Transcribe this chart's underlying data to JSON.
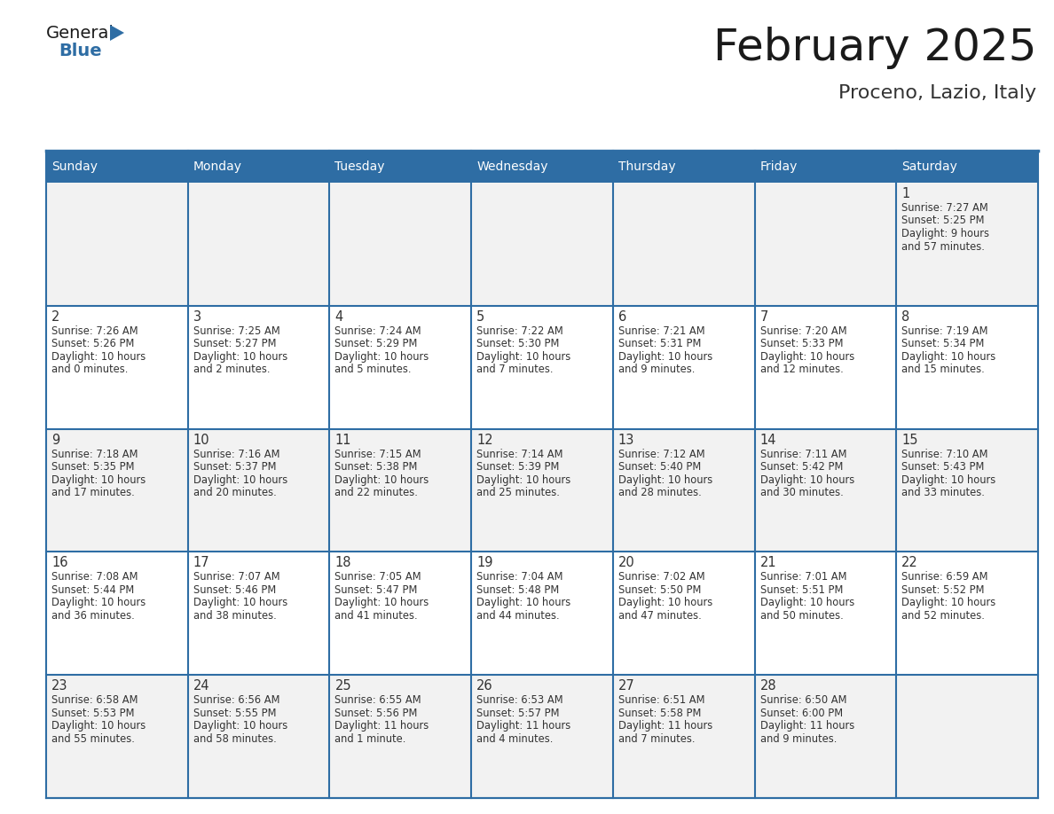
{
  "title": "February 2025",
  "subtitle": "Proceno, Lazio, Italy",
  "header_bg": "#2E6DA4",
  "header_text": "#FFFFFF",
  "cell_bg_gray": "#F2F2F2",
  "cell_bg_white": "#FFFFFF",
  "border_color": "#2E6DA4",
  "days_of_week": [
    "Sunday",
    "Monday",
    "Tuesday",
    "Wednesday",
    "Thursday",
    "Friday",
    "Saturday"
  ],
  "calendar_data": [
    [
      null,
      null,
      null,
      null,
      null,
      null,
      {
        "day": "1",
        "sunrise": "Sunrise: 7:27 AM",
        "sunset": "Sunset: 5:25 PM",
        "daylight1": "Daylight: 9 hours",
        "daylight2": "and 57 minutes."
      }
    ],
    [
      {
        "day": "2",
        "sunrise": "Sunrise: 7:26 AM",
        "sunset": "Sunset: 5:26 PM",
        "daylight1": "Daylight: 10 hours",
        "daylight2": "and 0 minutes."
      },
      {
        "day": "3",
        "sunrise": "Sunrise: 7:25 AM",
        "sunset": "Sunset: 5:27 PM",
        "daylight1": "Daylight: 10 hours",
        "daylight2": "and 2 minutes."
      },
      {
        "day": "4",
        "sunrise": "Sunrise: 7:24 AM",
        "sunset": "Sunset: 5:29 PM",
        "daylight1": "Daylight: 10 hours",
        "daylight2": "and 5 minutes."
      },
      {
        "day": "5",
        "sunrise": "Sunrise: 7:22 AM",
        "sunset": "Sunset: 5:30 PM",
        "daylight1": "Daylight: 10 hours",
        "daylight2": "and 7 minutes."
      },
      {
        "day": "6",
        "sunrise": "Sunrise: 7:21 AM",
        "sunset": "Sunset: 5:31 PM",
        "daylight1": "Daylight: 10 hours",
        "daylight2": "and 9 minutes."
      },
      {
        "day": "7",
        "sunrise": "Sunrise: 7:20 AM",
        "sunset": "Sunset: 5:33 PM",
        "daylight1": "Daylight: 10 hours",
        "daylight2": "and 12 minutes."
      },
      {
        "day": "8",
        "sunrise": "Sunrise: 7:19 AM",
        "sunset": "Sunset: 5:34 PM",
        "daylight1": "Daylight: 10 hours",
        "daylight2": "and 15 minutes."
      }
    ],
    [
      {
        "day": "9",
        "sunrise": "Sunrise: 7:18 AM",
        "sunset": "Sunset: 5:35 PM",
        "daylight1": "Daylight: 10 hours",
        "daylight2": "and 17 minutes."
      },
      {
        "day": "10",
        "sunrise": "Sunrise: 7:16 AM",
        "sunset": "Sunset: 5:37 PM",
        "daylight1": "Daylight: 10 hours",
        "daylight2": "and 20 minutes."
      },
      {
        "day": "11",
        "sunrise": "Sunrise: 7:15 AM",
        "sunset": "Sunset: 5:38 PM",
        "daylight1": "Daylight: 10 hours",
        "daylight2": "and 22 minutes."
      },
      {
        "day": "12",
        "sunrise": "Sunrise: 7:14 AM",
        "sunset": "Sunset: 5:39 PM",
        "daylight1": "Daylight: 10 hours",
        "daylight2": "and 25 minutes."
      },
      {
        "day": "13",
        "sunrise": "Sunrise: 7:12 AM",
        "sunset": "Sunset: 5:40 PM",
        "daylight1": "Daylight: 10 hours",
        "daylight2": "and 28 minutes."
      },
      {
        "day": "14",
        "sunrise": "Sunrise: 7:11 AM",
        "sunset": "Sunset: 5:42 PM",
        "daylight1": "Daylight: 10 hours",
        "daylight2": "and 30 minutes."
      },
      {
        "day": "15",
        "sunrise": "Sunrise: 7:10 AM",
        "sunset": "Sunset: 5:43 PM",
        "daylight1": "Daylight: 10 hours",
        "daylight2": "and 33 minutes."
      }
    ],
    [
      {
        "day": "16",
        "sunrise": "Sunrise: 7:08 AM",
        "sunset": "Sunset: 5:44 PM",
        "daylight1": "Daylight: 10 hours",
        "daylight2": "and 36 minutes."
      },
      {
        "day": "17",
        "sunrise": "Sunrise: 7:07 AM",
        "sunset": "Sunset: 5:46 PM",
        "daylight1": "Daylight: 10 hours",
        "daylight2": "and 38 minutes."
      },
      {
        "day": "18",
        "sunrise": "Sunrise: 7:05 AM",
        "sunset": "Sunset: 5:47 PM",
        "daylight1": "Daylight: 10 hours",
        "daylight2": "and 41 minutes."
      },
      {
        "day": "19",
        "sunrise": "Sunrise: 7:04 AM",
        "sunset": "Sunset: 5:48 PM",
        "daylight1": "Daylight: 10 hours",
        "daylight2": "and 44 minutes."
      },
      {
        "day": "20",
        "sunrise": "Sunrise: 7:02 AM",
        "sunset": "Sunset: 5:50 PM",
        "daylight1": "Daylight: 10 hours",
        "daylight2": "and 47 minutes."
      },
      {
        "day": "21",
        "sunrise": "Sunrise: 7:01 AM",
        "sunset": "Sunset: 5:51 PM",
        "daylight1": "Daylight: 10 hours",
        "daylight2": "and 50 minutes."
      },
      {
        "day": "22",
        "sunrise": "Sunrise: 6:59 AM",
        "sunset": "Sunset: 5:52 PM",
        "daylight1": "Daylight: 10 hours",
        "daylight2": "and 52 minutes."
      }
    ],
    [
      {
        "day": "23",
        "sunrise": "Sunrise: 6:58 AM",
        "sunset": "Sunset: 5:53 PM",
        "daylight1": "Daylight: 10 hours",
        "daylight2": "and 55 minutes."
      },
      {
        "day": "24",
        "sunrise": "Sunrise: 6:56 AM",
        "sunset": "Sunset: 5:55 PM",
        "daylight1": "Daylight: 10 hours",
        "daylight2": "and 58 minutes."
      },
      {
        "day": "25",
        "sunrise": "Sunrise: 6:55 AM",
        "sunset": "Sunset: 5:56 PM",
        "daylight1": "Daylight: 11 hours",
        "daylight2": "and 1 minute."
      },
      {
        "day": "26",
        "sunrise": "Sunrise: 6:53 AM",
        "sunset": "Sunset: 5:57 PM",
        "daylight1": "Daylight: 11 hours",
        "daylight2": "and 4 minutes."
      },
      {
        "day": "27",
        "sunrise": "Sunrise: 6:51 AM",
        "sunset": "Sunset: 5:58 PM",
        "daylight1": "Daylight: 11 hours",
        "daylight2": "and 7 minutes."
      },
      {
        "day": "28",
        "sunrise": "Sunrise: 6:50 AM",
        "sunset": "Sunset: 6:00 PM",
        "daylight1": "Daylight: 11 hours",
        "daylight2": "and 9 minutes."
      },
      null
    ]
  ],
  "text_color": "#333333",
  "logo_general_color": "#1a1a1a",
  "logo_blue_color": "#2E6DA4",
  "title_color": "#1a1a1a",
  "subtitle_color": "#333333"
}
